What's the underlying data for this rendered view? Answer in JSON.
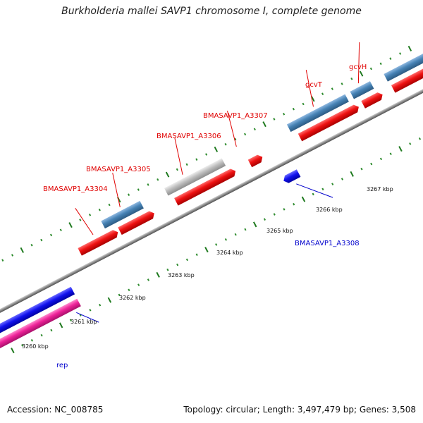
{
  "title": "Burkholderia mallei SAVP1 chromosome I, complete genome",
  "footer": {
    "accession": "Accession: NC_008785",
    "summary": "Topology: circular; Length: 3,497,479 bp; Genes: 3,508"
  },
  "colors": {
    "backbone": "#8a8a8a",
    "tick_major": "#1f7a1f",
    "tick_minor": "#2e8b2e",
    "gene_label_red": "#e00000",
    "gene_label_blue": "#0000cc",
    "cds_red": "#ee1111",
    "steel_blue": "#4682b4",
    "grey": "#b8b8b8",
    "blue": "#1111ee",
    "magenta": "#ee2299"
  },
  "kbp_ticks": [
    "3260 kbp",
    "3261 kbp",
    "3262 kbp",
    "3263 kbp",
    "3264 kbp",
    "3265 kbp",
    "3266 kbp",
    "3267 kbp"
  ],
  "gene_labels": [
    {
      "text": "BMASAVP1_A3304",
      "color": "red"
    },
    {
      "text": "BMASAVP1_A3305",
      "color": "red"
    },
    {
      "text": "BMASAVP1_A3306",
      "color": "red"
    },
    {
      "text": "BMASAVP1_A3307",
      "color": "red"
    },
    {
      "text": "gcvT",
      "color": "red"
    },
    {
      "text": "gcvH",
      "color": "red"
    },
    {
      "text": "BMASAVP1_A3308",
      "color": "blue"
    },
    {
      "text": "rep",
      "color": "blue"
    }
  ]
}
